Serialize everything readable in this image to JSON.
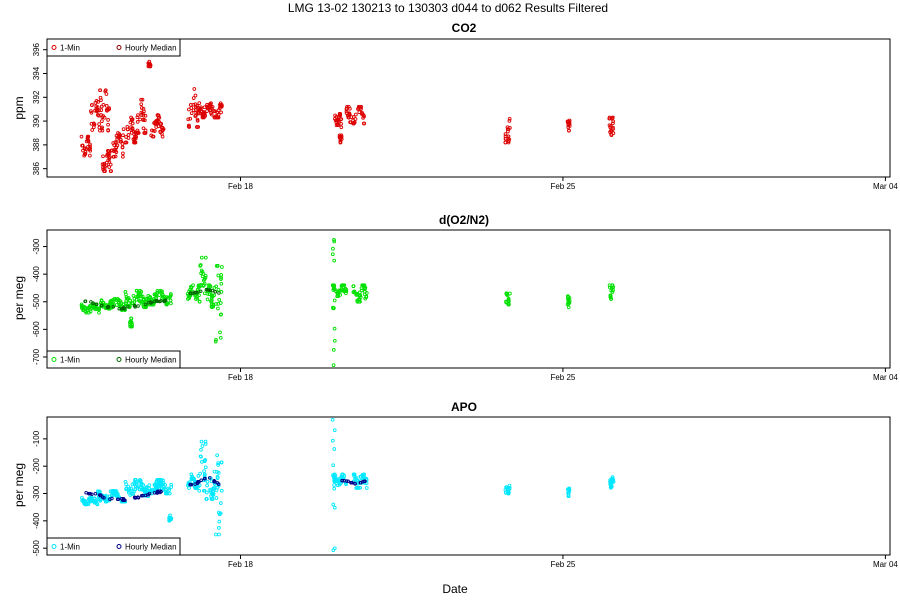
{
  "figure": {
    "title": "LMG   13-02    130213 to 130303    d044 to d062   Results Filtered",
    "xlabel": "Date"
  },
  "chart_data": [
    {
      "type": "scatter",
      "title": "CO2",
      "ylabel": "ppm",
      "xlabel": "",
      "x_ticks": [
        {
          "day": 18,
          "label": "Feb 18"
        },
        {
          "day": 25,
          "label": "Feb 25"
        },
        {
          "day": 32,
          "label": "Mar 04"
        }
      ],
      "xlim": [
        13.8,
        32.1
      ],
      "ylim": [
        385.3,
        396.9
      ],
      "y_ticks": [
        386,
        388,
        390,
        392,
        394,
        396
      ],
      "legend_placement": "top-left",
      "series": [
        {
          "name": "1-Min",
          "color": "#dd0000",
          "clusters": [
            {
              "x": [
                14.55,
                14.75
              ],
              "y": [
                387.1,
                388.7
              ]
            },
            {
              "x": [
                14.75,
                14.95
              ],
              "y": [
                389.2,
                392.1
              ]
            },
            {
              "x": [
                14.95,
                15.15
              ],
              "y": [
                389.2,
                392.6
              ]
            },
            {
              "x": [
                15.0,
                15.2
              ],
              "y": [
                385.8,
                387.5
              ]
            },
            {
              "x": [
                15.2,
                15.45
              ],
              "y": [
                387.0,
                389.0
              ]
            },
            {
              "x": [
                15.45,
                15.75
              ],
              "y": [
                388.2,
                390.3
              ]
            },
            {
              "x": [
                15.75,
                15.95
              ],
              "y": [
                389.0,
                391.8
              ]
            },
            {
              "x": [
                16.0,
                16.05
              ],
              "y": [
                394.6,
                395.0
              ]
            },
            {
              "x": [
                16.05,
                16.35
              ],
              "y": [
                388.7,
                390.5
              ]
            },
            {
              "x": [
                16.85,
                17.15
              ],
              "y": [
                389.5,
                392.7
              ]
            },
            {
              "x": [
                17.15,
                17.6
              ],
              "y": [
                390.3,
                391.5
              ]
            },
            {
              "x": [
                20.05,
                20.2
              ],
              "y": [
                389.4,
                390.6
              ]
            },
            {
              "x": [
                20.15,
                20.2
              ],
              "y": [
                388.2,
                388.8
              ]
            },
            {
              "x": [
                20.3,
                20.7
              ],
              "y": [
                389.8,
                391.2
              ]
            },
            {
              "x": [
                23.75,
                23.85
              ],
              "y": [
                388.2,
                390.3
              ]
            },
            {
              "x": [
                25.1,
                25.15
              ],
              "y": [
                389.2,
                390.1
              ]
            },
            {
              "x": [
                26.0,
                26.1
              ],
              "y": [
                388.8,
                390.3
              ]
            }
          ]
        },
        {
          "name": "Hourly Median",
          "color": "#880000",
          "clusters": []
        }
      ]
    },
    {
      "type": "scatter",
      "title": "d(O2/N2)",
      "ylabel": "per meg",
      "xlabel": "",
      "x_ticks": [
        {
          "day": 18,
          "label": "Feb 18"
        },
        {
          "day": 25,
          "label": "Feb 25"
        },
        {
          "day": 32,
          "label": "Mar 04"
        }
      ],
      "xlim": [
        13.8,
        32.1
      ],
      "ylim": [
        -740,
        -240
      ],
      "y_ticks": [
        -300,
        -400,
        -500,
        -600,
        -700
      ],
      "legend_placement": "bottom-left",
      "series": [
        {
          "name": "1-Min",
          "color": "#00e000",
          "clusters": [
            {
              "x": [
                14.55,
                14.95
              ],
              "y": [
                -540,
                -510
              ]
            },
            {
              "x": [
                14.95,
                15.5
              ],
              "y": [
                -530,
                -490
              ]
            },
            {
              "x": [
                15.5,
                16.0
              ],
              "y": [
                -520,
                -460
              ]
            },
            {
              "x": [
                15.6,
                15.65
              ],
              "y": [
                -590,
                -560
              ]
            },
            {
              "x": [
                16.0,
                16.5
              ],
              "y": [
                -510,
                -460
              ]
            },
            {
              "x": [
                16.85,
                17.1
              ],
              "y": [
                -490,
                -440
              ]
            },
            {
              "x": [
                17.1,
                17.25
              ],
              "y": [
                -500,
                -340
              ]
            },
            {
              "x": [
                17.25,
                17.45
              ],
              "y": [
                -520,
                -440
              ]
            },
            {
              "x": [
                17.45,
                17.6
              ],
              "y": [
                -660,
                -370
              ]
            },
            {
              "x": [
                20.0,
                20.05
              ],
              "y": [
                -730,
                -240
              ]
            },
            {
              "x": [
                20.0,
                20.3
              ],
              "y": [
                -480,
                -440
              ]
            },
            {
              "x": [
                20.45,
                20.75
              ],
              "y": [
                -500,
                -440
              ]
            },
            {
              "x": [
                23.75,
                23.85
              ],
              "y": [
                -510,
                -470
              ]
            },
            {
              "x": [
                25.1,
                25.15
              ],
              "y": [
                -520,
                -480
              ]
            },
            {
              "x": [
                26.0,
                26.1
              ],
              "y": [
                -490,
                -440
              ]
            }
          ]
        },
        {
          "name": "Hourly Median",
          "color": "#006600",
          "clusters": [
            {
              "x": [
                14.6,
                16.4
              ],
              "y": [
                -525,
                -480
              ]
            },
            {
              "x": [
                16.9,
                17.55
              ],
              "y": [
                -470,
                -450
              ]
            }
          ]
        }
      ]
    },
    {
      "type": "scatter",
      "title": "APO",
      "ylabel": "per meg",
      "xlabel": "",
      "x_ticks": [
        {
          "day": 18,
          "label": "Feb 18"
        },
        {
          "day": 25,
          "label": "Feb 25"
        },
        {
          "day": 32,
          "label": "Mar 04"
        }
      ],
      "xlim": [
        13.8,
        32.1
      ],
      "ylim": [
        -525,
        -20
      ],
      "y_ticks": [
        -100,
        -200,
        -300,
        -400,
        -500
      ],
      "legend_placement": "bottom-left",
      "series": [
        {
          "name": "1-Min",
          "color": "#00e8ff",
          "clusters": [
            {
              "x": [
                14.55,
                14.9
              ],
              "y": [
                -340,
                -315
              ]
            },
            {
              "x": [
                14.9,
                15.5
              ],
              "y": [
                -330,
                -290
              ]
            },
            {
              "x": [
                15.5,
                16.0
              ],
              "y": [
                -310,
                -250
              ]
            },
            {
              "x": [
                16.0,
                16.5
              ],
              "y": [
                -300,
                -250
              ]
            },
            {
              "x": [
                16.45,
                16.5
              ],
              "y": [
                -400,
                -380
              ]
            },
            {
              "x": [
                16.85,
                17.1
              ],
              "y": [
                -280,
                -230
              ]
            },
            {
              "x": [
                17.1,
                17.25
              ],
              "y": [
                -290,
                -110
              ]
            },
            {
              "x": [
                17.25,
                17.45
              ],
              "y": [
                -320,
                -220
              ]
            },
            {
              "x": [
                17.45,
                17.6
              ],
              "y": [
                -450,
                -160
              ]
            },
            {
              "x": [
                20.0,
                20.05
              ],
              "y": [
                -520,
                -30
              ]
            },
            {
              "x": [
                20.0,
                20.3
              ],
              "y": [
                -270,
                -230
              ]
            },
            {
              "x": [
                20.45,
                20.75
              ],
              "y": [
                -280,
                -230
              ]
            },
            {
              "x": [
                23.75,
                23.85
              ],
              "y": [
                -300,
                -270
              ]
            },
            {
              "x": [
                25.1,
                25.15
              ],
              "y": [
                -310,
                -280
              ]
            },
            {
              "x": [
                26.0,
                26.1
              ],
              "y": [
                -280,
                -240
              ]
            }
          ]
        },
        {
          "name": "Hourly Median",
          "color": "#000088",
          "clusters": [
            {
              "x": [
                14.6,
                16.4
              ],
              "y": [
                -325,
                -275
              ]
            },
            {
              "x": [
                16.9,
                17.55
              ],
              "y": [
                -270,
                -230
              ]
            },
            {
              "x": [
                20.2,
                20.75
              ],
              "y": [
                -265,
                -245
              ]
            }
          ]
        }
      ]
    }
  ]
}
